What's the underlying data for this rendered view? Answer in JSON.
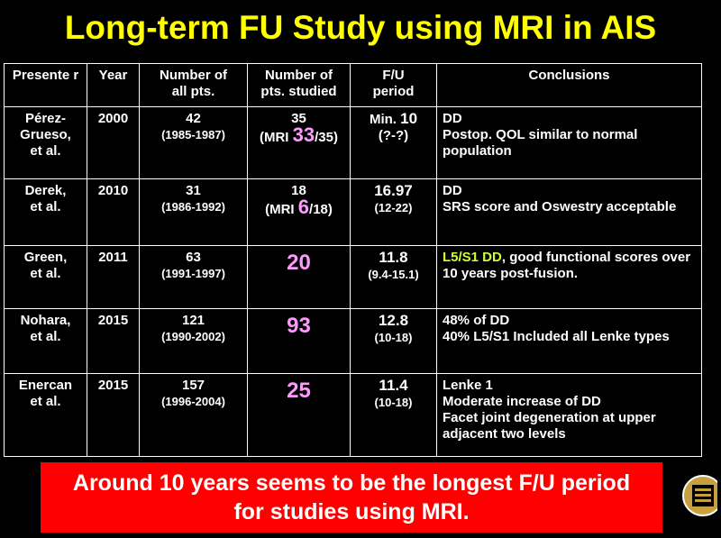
{
  "title": "Long-term FU Study using MRI in AIS",
  "headers": {
    "presenter": "Presente r",
    "year": "Year",
    "all": [
      "Number of",
      "all pts."
    ],
    "studied": [
      "Number of",
      "pts. studied"
    ],
    "fu": [
      "F/U",
      "period"
    ],
    "conclusions": "Conclusions"
  },
  "rows": [
    {
      "presenter": [
        "Pérez-",
        "Grueso,",
        "et al."
      ],
      "year": "2000",
      "all": "42",
      "all_range": "(1985-1987)",
      "studied_top": "35",
      "studied_pre": "(MRI ",
      "studied_num": "33",
      "studied_post": "/35)",
      "fu_prefix": "Min. ",
      "fu": "10",
      "fu_range": "(?-?)",
      "conclusions": [
        "DD",
        "Postop. QOL similar to normal population"
      ]
    },
    {
      "presenter": [
        "Derek,",
        "et al."
      ],
      "year": "2010",
      "all": "31",
      "all_range": "(1986-1992)",
      "studied_top": "18",
      "studied_pre": "(MRI ",
      "studied_num": "6",
      "studied_post": "/18)",
      "fu": "16.97",
      "fu_range": "(12-22)",
      "conclusions": [
        "DD",
        "SRS score and Oswestry acceptable"
      ]
    },
    {
      "presenter": [
        "Green,",
        "et al."
      ],
      "year": "2011",
      "all": "63",
      "all_range": "(1991-1997)",
      "studied": "20",
      "fu": "11.8",
      "fu_range": "(9.4-15.1)",
      "conclusion_highlight": "L5/S1 DD",
      "conclusion_rest": ", good functional scores over 10 years post-fusion."
    },
    {
      "presenter": [
        "Nohara,",
        "et al."
      ],
      "year": "2015",
      "all": "121",
      "all_range": "(1990-2002)",
      "studied": "93",
      "fu": "12.8",
      "fu_range": "(10-18)",
      "conclusions": [
        "48% of DD",
        "40% L5/S1 Included all Lenke types"
      ]
    },
    {
      "presenter": [
        "Enercan",
        "et al."
      ],
      "year": "2015",
      "all": "157",
      "all_range": "(1996-2004)",
      "studied": "25",
      "fu": "11.4",
      "fu_range": "(10-18)",
      "conclusions": [
        "Lenke 1",
        "Moderate increase of DD",
        "Facet joint degeneration at upper adjacent two levels"
      ]
    }
  ],
  "banner": [
    "Around 10 years seems to be the longest F/U period",
    "for studies using MRI."
  ],
  "colors": {
    "title": "#ffff00",
    "banner_bg": "#ff0000",
    "highlight": "#ff99ff",
    "green_text": "#ccff33"
  }
}
